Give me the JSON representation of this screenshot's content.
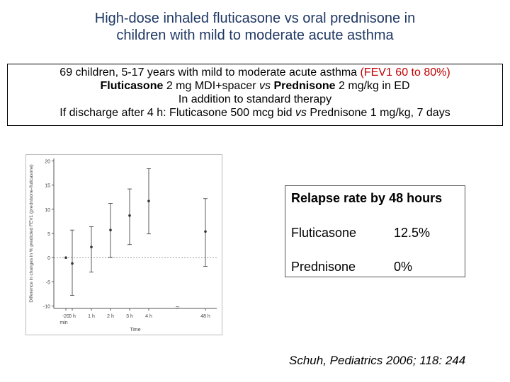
{
  "header": {
    "title_lines": [
      "High-dose inhaled fluticasone vs oral prednisone in",
      "children with mild to moderate acute asthma"
    ]
  },
  "summary_box": {
    "lines": [
      [
        {
          "text": "69 children, 5-17 years with mild to moderate acute asthma "
        },
        {
          "text": "(FEV1 60 to 80%)",
          "color": "#c00000"
        }
      ],
      [
        {
          "text": "Fluticasone",
          "bold": true
        },
        {
          "text": " 2 mg MDI+spacer "
        },
        {
          "text": "vs",
          "italic": true
        },
        {
          "text": " "
        },
        {
          "text": "Prednisone",
          "bold": true
        },
        {
          "text": " 2 mg/kg in ED"
        }
      ],
      [
        {
          "text": "In addition to standard therapy"
        }
      ],
      [
        {
          "text": "If discharge after 4 h: Fluticasone 500 mcg bid "
        },
        {
          "text": "vs",
          "italic": true
        },
        {
          "text": " Prednisone 1 mg/kg, 7 days"
        }
      ]
    ]
  },
  "relapse_table": {
    "title": "Relapse rate by 48 hours",
    "rows": [
      [
        "Fluticasone",
        "12.5%"
      ],
      [
        "Prednisone",
        "0%"
      ]
    ]
  },
  "citation": "Schuh, Pediatrics 2006; 118: 244",
  "chart_data": {
    "type": "errorbar",
    "y_label": "Difference in changes in % predicted FEV1 (prednisone-fluticasone)",
    "x_label": "Time",
    "categories": [
      "-20",
      "0 h",
      "1 h",
      "2 h",
      "3 h",
      "4 h",
      "48 h"
    ],
    "x_unit_note": "min",
    "values": [
      0,
      -1.2,
      2.2,
      5.7,
      8.7,
      11.7,
      5.4
    ],
    "lower": [
      0,
      -7.8,
      -3,
      0.1,
      2.7,
      4.9,
      -1.8
    ],
    "upper": [
      0,
      5.7,
      6.4,
      11.2,
      14.2,
      18.4,
      12.2
    ],
    "ylim": [
      -10.5,
      20.5
    ],
    "yticks": [
      -10,
      -5,
      0,
      5,
      10,
      15,
      20
    ],
    "color": "#333333"
  }
}
